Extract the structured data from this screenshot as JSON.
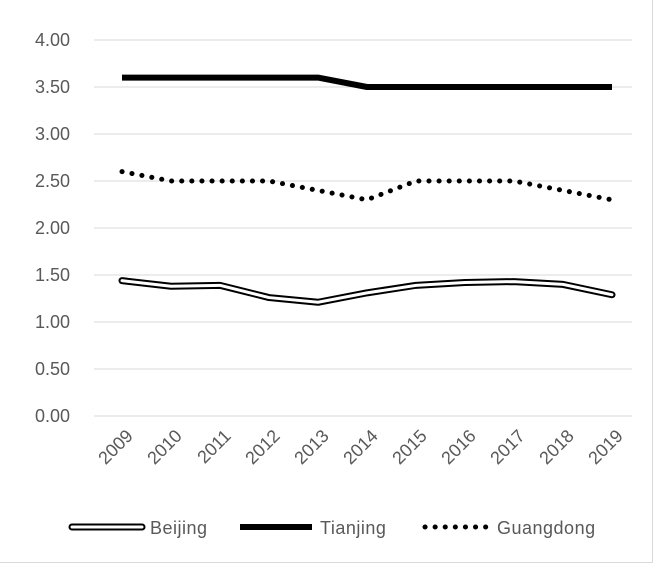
{
  "chart_data": {
    "type": "line",
    "title": "",
    "xlabel": "",
    "ylabel": "",
    "categories": [
      "2009",
      "2010",
      "2011",
      "2012",
      "2013",
      "2014",
      "2015",
      "2016",
      "2017",
      "2018",
      "2019"
    ],
    "ylim": [
      0,
      4
    ],
    "yticks": [
      "0.00",
      "0.50",
      "1.00",
      "1.50",
      "2.00",
      "2.50",
      "3.00",
      "3.50",
      "4.00"
    ],
    "grid": true,
    "legend_position": "bottom",
    "series": [
      {
        "name": "Beijing",
        "style": "double",
        "color": "#000000",
        "values": [
          1.44,
          1.38,
          1.39,
          1.26,
          1.21,
          1.31,
          1.39,
          1.42,
          1.43,
          1.4,
          1.29
        ]
      },
      {
        "name": "Tianjing",
        "style": "solid",
        "color": "#000000",
        "values": [
          3.6,
          3.6,
          3.6,
          3.6,
          3.6,
          3.5,
          3.5,
          3.5,
          3.5,
          3.5,
          3.5
        ]
      },
      {
        "name": "Guangdong",
        "style": "dotted",
        "color": "#000000",
        "values": [
          2.6,
          2.5,
          2.5,
          2.5,
          2.4,
          2.3,
          2.5,
          2.5,
          2.5,
          2.4,
          2.3
        ]
      }
    ]
  },
  "colors": {
    "gridline": "#d9d9d9",
    "text": "#595959",
    "series": "#000000"
  }
}
